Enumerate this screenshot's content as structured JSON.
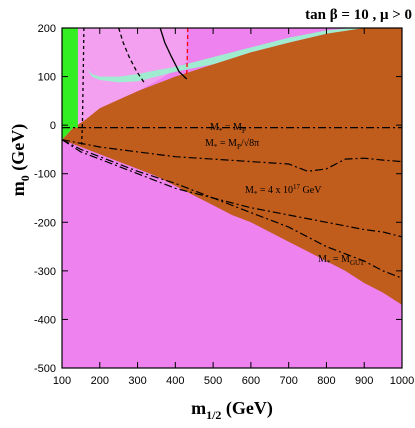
{
  "chart_data": {
    "type": "area",
    "title": "tan β = 10 ,  μ > 0",
    "xlabel": "m",
    "xlabel_sub": "1/2",
    "xlabel_unit": " (GeV)",
    "ylabel": "m",
    "ylabel_sub": "0",
    "ylabel_unit": " (GeV)",
    "xlim": [
      100,
      1000
    ],
    "ylim": [
      -500,
      200
    ],
    "x_ticks": [
      100,
      200,
      300,
      400,
      500,
      600,
      700,
      800,
      900,
      1000
    ],
    "x_tick_labels": [
      "100",
      "200",
      "300",
      "400",
      "500",
      "600",
      "700",
      "800",
      "900",
      "1000"
    ],
    "y_ticks": [
      200,
      100,
      0,
      -100,
      -200,
      -300,
      -400,
      -500
    ],
    "y_tick_labels": [
      "200",
      "100",
      "0",
      "-100",
      "-200",
      "-300",
      "-400",
      "-500"
    ],
    "regions": [
      {
        "name": "brown",
        "color": "#c05c1c",
        "points": [
          [
            100,
            -30
          ],
          [
            130,
            -5
          ],
          [
            160,
            10
          ],
          [
            200,
            35
          ],
          [
            300,
            70
          ],
          [
            400,
            100
          ],
          [
            500,
            125
          ],
          [
            600,
            150
          ],
          [
            700,
            170
          ],
          [
            800,
            188
          ],
          [
            880,
            200
          ],
          [
            1000,
            200
          ],
          [
            1000,
            -370
          ],
          [
            950,
            -345
          ],
          [
            900,
            -325
          ],
          [
            850,
            -300
          ],
          [
            800,
            -280
          ],
          [
            750,
            -260
          ],
          [
            700,
            -240
          ],
          [
            650,
            -220
          ],
          [
            600,
            -200
          ],
          [
            550,
            -185
          ],
          [
            500,
            -165
          ],
          [
            450,
            -145
          ],
          [
            400,
            -125
          ],
          [
            350,
            -105
          ],
          [
            300,
            -90
          ],
          [
            250,
            -75
          ],
          [
            200,
            -60
          ],
          [
            150,
            -45
          ],
          [
            100,
            -30
          ]
        ]
      },
      {
        "name": "pink-left",
        "color": "#f4a0f0",
        "points": [
          [
            100,
            200
          ],
          [
            430,
            200
          ],
          [
            430,
            130
          ],
          [
            360,
            95
          ],
          [
            300,
            70
          ],
          [
            200,
            35
          ],
          [
            160,
            10
          ],
          [
            130,
            -5
          ],
          [
            100,
            -30
          ]
        ]
      },
      {
        "name": "green",
        "color": "#33ee22",
        "points": [
          [
            100,
            200
          ],
          [
            142,
            200
          ],
          [
            142,
            -5
          ],
          [
            130,
            -5
          ],
          [
            100,
            -30
          ]
        ]
      },
      {
        "name": "cosmo-band",
        "color": "#a0ecd0",
        "points": [
          [
            165,
            115
          ],
          [
            180,
            100
          ],
          [
            200,
            93
          ],
          [
            250,
            88
          ],
          [
            300,
            90
          ],
          [
            350,
            100
          ],
          [
            400,
            110
          ],
          [
            500,
            125
          ],
          [
            600,
            150
          ],
          [
            700,
            170
          ],
          [
            800,
            188
          ],
          [
            900,
            200
          ],
          [
            870,
            200
          ],
          [
            800,
            195
          ],
          [
            700,
            180
          ],
          [
            600,
            160
          ],
          [
            500,
            140
          ],
          [
            400,
            120
          ],
          [
            350,
            113
          ],
          [
            300,
            105
          ],
          [
            250,
            100
          ],
          [
            200,
            100
          ],
          [
            180,
            105
          ]
        ]
      }
    ],
    "contours": [
      {
        "name": "chargino-limit",
        "color": "#000000",
        "dash": "3,3",
        "points": [
          [
            158,
            200
          ],
          [
            156,
            100
          ],
          [
            154,
            0
          ],
          [
            152,
            -40
          ]
        ]
      },
      {
        "name": "higgs-limit",
        "color": "#ff0000",
        "dash": "4,3",
        "points": [
          [
            433,
            200
          ],
          [
            432,
            150
          ],
          [
            430,
            100
          ]
        ]
      },
      {
        "name": "b-s-gamma-a",
        "color": "#000000",
        "dash": "4,3",
        "points": [
          [
            250,
            200
          ],
          [
            262,
            170
          ],
          [
            278,
            140
          ],
          [
            298,
            110
          ],
          [
            320,
            85
          ]
        ]
      },
      {
        "name": "b-s-gamma-b",
        "color": "#000000",
        "dash": "",
        "points": [
          [
            360,
            200
          ],
          [
            372,
            170
          ],
          [
            390,
            140
          ],
          [
            410,
            110
          ],
          [
            430,
            95
          ]
        ]
      }
    ],
    "boundaries": [
      {
        "label": "M* = MP",
        "dash": "8,3,2,3",
        "points": [
          [
            100,
            -5
          ],
          [
            1000,
            -5
          ]
        ]
      },
      {
        "label": "M* = MP/√8π",
        "dash": "8,3,2,3",
        "points": [
          [
            100,
            -30
          ],
          [
            200,
            -45
          ],
          [
            300,
            -55
          ],
          [
            400,
            -65
          ],
          [
            500,
            -70
          ],
          [
            600,
            -75
          ],
          [
            700,
            -80
          ],
          [
            750,
            -95
          ],
          [
            800,
            -90
          ],
          [
            850,
            -70
          ],
          [
            900,
            -68
          ],
          [
            950,
            -72
          ],
          [
            1000,
            -75
          ]
        ]
      },
      {
        "label": "M* = 4 x 10^17  GeV",
        "dash": "8,3,2,3",
        "points": [
          [
            100,
            -30
          ],
          [
            150,
            -55
          ],
          [
            200,
            -70
          ],
          [
            300,
            -100
          ],
          [
            400,
            -130
          ],
          [
            500,
            -150
          ],
          [
            600,
            -170
          ],
          [
            700,
            -185
          ],
          [
            800,
            -200
          ],
          [
            900,
            -215
          ],
          [
            950,
            -220
          ],
          [
            1000,
            -230
          ]
        ]
      },
      {
        "label": "M* = MGUT",
        "dash": "8,3,2,3",
        "points": [
          [
            100,
            -30
          ],
          [
            150,
            -50
          ],
          [
            200,
            -65
          ],
          [
            300,
            -95
          ],
          [
            400,
            -120
          ],
          [
            500,
            -150
          ],
          [
            600,
            -180
          ],
          [
            700,
            -210
          ],
          [
            800,
            -250
          ],
          [
            900,
            -280
          ],
          [
            950,
            -300
          ],
          [
            1000,
            -315
          ]
        ]
      }
    ],
    "annotations": [
      {
        "main": "M",
        "sub": "*",
        "rest": " = M",
        "sub2": "P",
        "tail": ""
      },
      {
        "main": "M",
        "sub": "*",
        "rest": " = M",
        "sub2": "P",
        "tail": "/√8π"
      },
      {
        "main": "M",
        "sub": "*",
        "rest": " = 4 x 10",
        "sup": "17",
        "tail": "  GeV"
      },
      {
        "main": "M",
        "sub": "*",
        "rest": " = M",
        "sub2": "GUT",
        "tail": ""
      }
    ],
    "background_color": "#ee82ee",
    "grid": false,
    "legend": "none"
  }
}
